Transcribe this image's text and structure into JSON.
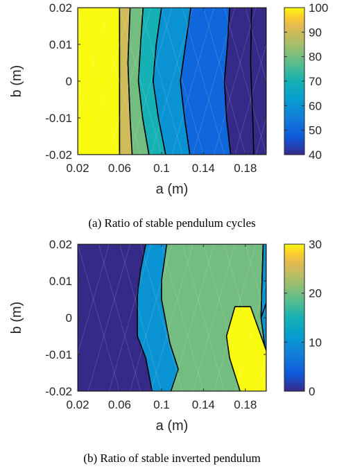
{
  "chart_data": [
    {
      "type": "contour",
      "caption": "(a) Ratio of stable pendulum cycles",
      "xlabel": "a (m)",
      "ylabel": "b (m)",
      "xlim": [
        0.02,
        0.2
      ],
      "ylim": [
        -0.02,
        0.02
      ],
      "xticks": [
        "0.02",
        "0.06",
        "0.1",
        "0.14",
        "0.18"
      ],
      "yticks": [
        "-0.02",
        "-0.01",
        "0",
        "0.01",
        "0.02"
      ],
      "colorbar": {
        "range": [
          40,
          100
        ],
        "ticks": [
          "40",
          "50",
          "60",
          "70",
          "80",
          "90",
          "100"
        ]
      },
      "regions": [
        {
          "level": 100,
          "boundary": [
            [
              0.02,
              0.02
            ],
            [
              0.06,
              0.02
            ],
            [
              0.06,
              -0.02
            ],
            [
              0.02,
              -0.02
            ]
          ]
        },
        {
          "level": 90,
          "boundary": [
            [
              0.06,
              0.02
            ],
            [
              0.07,
              0.02
            ],
            [
              0.068,
              0.005
            ],
            [
              0.07,
              -0.01
            ],
            [
              0.072,
              -0.02
            ],
            [
              0.06,
              -0.02
            ]
          ]
        },
        {
          "level": 80,
          "boundary": [
            [
              0.07,
              0.02
            ],
            [
              0.0825,
              0.02
            ],
            [
              0.08,
              0.01
            ],
            [
              0.078,
              0.0
            ],
            [
              0.082,
              -0.01
            ],
            [
              0.088,
              -0.02
            ],
            [
              0.072,
              -0.02
            ],
            [
              0.07,
              -0.01
            ],
            [
              0.068,
              0.005
            ]
          ]
        },
        {
          "level": 70,
          "boundary": [
            [
              0.0825,
              0.02
            ],
            [
              0.1,
              0.02
            ],
            [
              0.095,
              0.01
            ],
            [
              0.092,
              0.0
            ],
            [
              0.097,
              -0.01
            ],
            [
              0.104,
              -0.02
            ],
            [
              0.088,
              -0.02
            ],
            [
              0.082,
              -0.01
            ],
            [
              0.078,
              0.0
            ],
            [
              0.08,
              0.01
            ]
          ]
        },
        {
          "level": 60,
          "boundary": [
            [
              0.1,
              0.02
            ],
            [
              0.128,
              0.02
            ],
            [
              0.123,
              0.01
            ],
            [
              0.118,
              0.0
            ],
            [
              0.122,
              -0.01
            ],
            [
              0.127,
              -0.02
            ],
            [
              0.104,
              -0.02
            ],
            [
              0.097,
              -0.01
            ],
            [
              0.092,
              0.0
            ],
            [
              0.095,
              0.01
            ]
          ]
        },
        {
          "level": 50,
          "boundary": [
            [
              0.128,
              0.02
            ],
            [
              0.165,
              0.02
            ],
            [
              0.163,
              0.01
            ],
            [
              0.16,
              0.0
            ],
            [
              0.162,
              -0.01
            ],
            [
              0.166,
              -0.02
            ],
            [
              0.127,
              -0.02
            ],
            [
              0.122,
              -0.01
            ],
            [
              0.118,
              0.0
            ],
            [
              0.123,
              0.01
            ]
          ]
        },
        {
          "level": 40,
          "boundary": [
            [
              0.165,
              0.02
            ],
            [
              0.2,
              0.02
            ],
            [
              0.2,
              -0.02
            ],
            [
              0.166,
              -0.02
            ],
            [
              0.162,
              -0.01
            ],
            [
              0.16,
              0.0
            ],
            [
              0.163,
              0.01
            ]
          ]
        },
        {
          "level": 40,
          "boundary": [
            [
              0.186,
              0.02
            ],
            [
              0.2,
              0.02
            ],
            [
              0.2,
              -0.02
            ],
            [
              0.188,
              -0.02
            ],
            [
              0.187,
              -0.01
            ],
            [
              0.185,
              0.005
            ]
          ]
        }
      ]
    },
    {
      "type": "contour",
      "caption": "(b) Ratio of stable inverted pendulum",
      "xlabel": "a (m)",
      "ylabel": "b (m)",
      "xlim": [
        0.02,
        0.2
      ],
      "ylim": [
        -0.02,
        0.02
      ],
      "xticks": [
        "0.02",
        "0.06",
        "0.1",
        "0.14",
        "0.18"
      ],
      "yticks": [
        "-0.02",
        "-0.01",
        "0",
        "0.01",
        "0.02"
      ],
      "colorbar": {
        "range": [
          0,
          30
        ],
        "ticks": [
          "0",
          "10",
          "20",
          "30"
        ]
      },
      "regions": [
        {
          "level": 0,
          "boundary": [
            [
              0.02,
              0.02
            ],
            [
              0.2,
              0.02
            ],
            [
              0.2,
              -0.02
            ],
            [
              0.02,
              -0.02
            ]
          ]
        },
        {
          "level": 10,
          "boundary": [
            [
              0.085,
              0.02
            ],
            [
              0.2,
              0.02
            ],
            [
              0.2,
              -0.02
            ],
            [
              0.091,
              -0.02
            ],
            [
              0.085,
              -0.011
            ],
            [
              0.077,
              -0.005
            ],
            [
              0.077,
              0.006
            ],
            [
              0.08,
              0.013
            ]
          ]
        },
        {
          "level": 20,
          "boundary": [
            [
              0.105,
              0.02
            ],
            [
              0.197,
              0.02
            ],
            [
              0.196,
              0.011
            ],
            [
              0.195,
              0.0
            ],
            [
              0.2,
              -0.011
            ],
            [
              0.2,
              -0.02
            ],
            [
              0.109,
              -0.02
            ],
            [
              0.116,
              -0.014
            ],
            [
              0.108,
              -0.007
            ],
            [
              0.1,
              0.005
            ],
            [
              0.1,
              0.01
            ]
          ]
        },
        {
          "level": 30,
          "boundary": [
            [
              0.185,
              0.003
            ],
            [
              0.2,
              -0.009
            ],
            [
              0.2,
              -0.02
            ],
            [
              0.175,
              -0.02
            ],
            [
              0.165,
              -0.011
            ],
            [
              0.162,
              -0.005
            ],
            [
              0.17,
              0.003
            ]
          ]
        },
        {
          "level": 10,
          "boundary": [
            [
              0.197,
              0.02
            ],
            [
              0.2,
              0.02
            ],
            [
              0.2,
              0.004
            ],
            [
              0.195,
              0.0
            ],
            [
              0.196,
              0.011
            ]
          ]
        }
      ]
    }
  ]
}
